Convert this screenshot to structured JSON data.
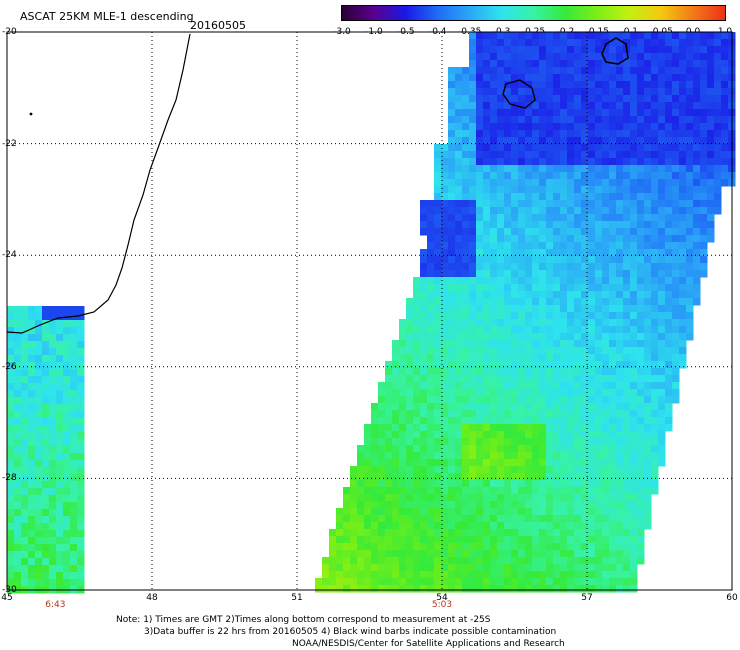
{
  "header": {
    "title": "ASCAT 25KM MLE-1 descending",
    "date": "20160505"
  },
  "colorbar": {
    "tick_labels": [
      "-3.0",
      "-1.0",
      "-0.5",
      "-0.4",
      "-0.35",
      "-0.3",
      "-0.25",
      "-0.2",
      "-0.15",
      "-0.1",
      "-0.05",
      "0.0",
      "1.0"
    ],
    "colors": [
      "#2a0033",
      "#5b0090",
      "#1b18e6",
      "#1f6cf5",
      "#2ba7f6",
      "#2ee3ee",
      "#37f2a6",
      "#35ea3a",
      "#7cef15",
      "#c2f012",
      "#f5c80e",
      "#f27a18",
      "#ee3117"
    ]
  },
  "axes": {
    "lon_labels": [
      "45",
      "48",
      "51",
      "54",
      "57",
      "60"
    ],
    "lat_labels": [
      "-20",
      "-22",
      "-24",
      "-26",
      "-28",
      "-30"
    ],
    "lon_range": [
      45,
      60
    ],
    "lat_range": [
      -30,
      -20
    ]
  },
  "times": [
    {
      "label": "6:43",
      "lon": 46
    },
    {
      "label": "5:03",
      "lon": 54
    }
  ],
  "notes": {
    "line1": "Note: 1) Times are GMT 2)Times along bottom correspond to measurement at -25S",
    "line2": "3)Data buffer is 22 hrs from 20160505 4) Black wind barbs indicate possible contamination",
    "line3": "NOAA/NESDIS/Center for Satellite Applications and Research"
  }
}
